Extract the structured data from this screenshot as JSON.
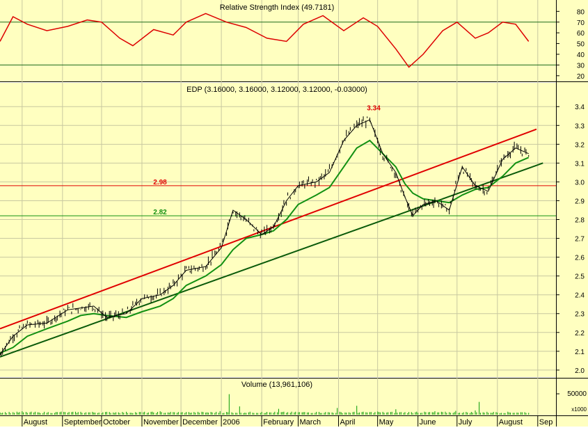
{
  "chart_data": {
    "type": "line",
    "panels": {
      "rsi": {
        "title": "Relative Strength Index (49.7181)",
        "ticks": [
          20,
          30,
          40,
          50,
          60,
          70,
          80
        ],
        "ylim": [
          16,
          88
        ],
        "bands": [
          30,
          70
        ],
        "series": {
          "color": "#dd0000",
          "x": [
            "2005-07-15",
            "2005-07-25",
            "2005-08-05",
            "2005-08-20",
            "2005-09-05",
            "2005-09-20",
            "2005-10-01",
            "2005-10-15",
            "2005-10-25",
            "2005-11-10",
            "2005-11-25",
            "2005-12-05",
            "2005-12-20",
            "2006-01-05",
            "2006-01-20",
            "2006-02-05",
            "2006-02-20",
            "2006-03-05",
            "2006-03-20",
            "2006-04-05",
            "2006-04-20",
            "2006-05-01",
            "2006-05-15",
            "2006-05-25",
            "2006-06-05",
            "2006-06-20",
            "2006-07-01",
            "2006-07-15",
            "2006-07-25",
            "2006-08-05",
            "2006-08-15",
            "2006-08-25"
          ],
          "values": [
            52,
            75,
            68,
            62,
            66,
            72,
            70,
            55,
            48,
            63,
            58,
            70,
            78,
            70,
            65,
            55,
            52,
            68,
            76,
            62,
            74,
            66,
            45,
            28,
            40,
            62,
            70,
            55,
            60,
            70,
            68,
            52
          ]
        }
      },
      "price": {
        "title": "EDP (3.16000, 3.16000, 3.12000, 3.12000, -0.03000)",
        "ticks": [
          2.0,
          2.1,
          2.2,
          2.3,
          2.4,
          2.5,
          2.6,
          2.7,
          2.8,
          2.9,
          3.0,
          3.1,
          3.2,
          3.3,
          3.4
        ],
        "ylim": [
          1.97,
          3.46
        ],
        "price_x": [
          "2005-07-15",
          "2005-07-25",
          "2005-08-05",
          "2005-08-20",
          "2005-09-05",
          "2005-09-15",
          "2005-09-25",
          "2005-10-05",
          "2005-10-20",
          "2005-11-01",
          "2005-11-15",
          "2005-11-25",
          "2005-12-05",
          "2005-12-20",
          "2006-01-01",
          "2006-01-10",
          "2006-01-20",
          "2006-02-01",
          "2006-02-10",
          "2006-02-20",
          "2006-03-01",
          "2006-03-15",
          "2006-03-25",
          "2006-04-05",
          "2006-04-15",
          "2006-04-25",
          "2006-05-05",
          "2006-05-15",
          "2006-05-22",
          "2006-05-28",
          "2006-06-05",
          "2006-06-15",
          "2006-06-25",
          "2006-07-05",
          "2006-07-15",
          "2006-07-25",
          "2006-08-05",
          "2006-08-15",
          "2006-08-25"
        ],
        "price_values": [
          2.08,
          2.18,
          2.24,
          2.25,
          2.32,
          2.33,
          2.34,
          2.28,
          2.3,
          2.38,
          2.4,
          2.45,
          2.53,
          2.55,
          2.65,
          2.85,
          2.8,
          2.72,
          2.76,
          2.9,
          2.98,
          3.0,
          3.05,
          3.22,
          3.3,
          3.33,
          3.15,
          3.05,
          2.92,
          2.82,
          2.88,
          2.9,
          2.85,
          3.08,
          2.98,
          2.95,
          3.12,
          3.18,
          3.15
        ],
        "ma_values": [
          2.09,
          2.12,
          2.18,
          2.22,
          2.26,
          2.29,
          2.3,
          2.29,
          2.28,
          2.31,
          2.34,
          2.38,
          2.45,
          2.5,
          2.56,
          2.64,
          2.7,
          2.72,
          2.74,
          2.8,
          2.88,
          2.93,
          2.97,
          3.08,
          3.18,
          3.22,
          3.15,
          3.08,
          2.99,
          2.94,
          2.91,
          2.9,
          2.89,
          2.93,
          2.96,
          2.97,
          3.03,
          3.1,
          3.13
        ],
        "ma_color": "#129012",
        "price_color": "#000000",
        "trend_lines": [
          {
            "color": "#e00000",
            "x0": "2005-07-15",
            "y0": 2.22,
            "x1": "2006-08-31",
            "y1": 3.28
          },
          {
            "color": "#0a5a0a",
            "x0": "2005-07-15",
            "y0": 2.07,
            "x1": "2006-09-05",
            "y1": 3.1
          }
        ],
        "levels": [
          {
            "value": 2.98,
            "label": "2.98",
            "color": "#e00000"
          },
          {
            "value": 2.82,
            "label": "2.82",
            "color": "#129012"
          }
        ],
        "peak_label": {
          "text": "3.34",
          "x": "2006-04-28",
          "y": 3.38,
          "color": "#dd0000"
        }
      },
      "volume": {
        "title": "Volume (13,961,106)",
        "tick": "50000",
        "scale_label": "x1000",
        "color": "#009900",
        "x": [
          "2005-07-15",
          "2005-08-01",
          "2005-08-15",
          "2005-09-01",
          "2005-09-15",
          "2005-10-01",
          "2005-10-15",
          "2005-11-01",
          "2005-11-15",
          "2005-12-01",
          "2005-12-15",
          "2006-01-01",
          "2006-01-08",
          "2006-01-15",
          "2006-02-01",
          "2006-02-15",
          "2006-03-01",
          "2006-03-15",
          "2006-04-01",
          "2006-04-15",
          "2006-05-01",
          "2006-05-15",
          "2006-06-01",
          "2006-06-15",
          "2006-07-01",
          "2006-07-15",
          "2006-07-18",
          "2006-08-01",
          "2006-08-15",
          "2006-08-25"
        ],
        "values": [
          10,
          12,
          8,
          15,
          11,
          9,
          14,
          10,
          12,
          9,
          11,
          16,
          80,
          30,
          14,
          22,
          12,
          18,
          25,
          40,
          15,
          20,
          18,
          12,
          14,
          16,
          75,
          12,
          10,
          9
        ],
        "ylim": [
          0,
          100
        ]
      }
    },
    "x_axis": {
      "months": [
        "August",
        "September",
        "October",
        "November",
        "December",
        "2006",
        "February",
        "March",
        "April",
        "May",
        "June",
        "July",
        "August",
        "Sep"
      ],
      "month_starts": [
        "2005-08-01",
        "2005-09-01",
        "2005-10-01",
        "2005-11-01",
        "2005-12-01",
        "2006-01-01",
        "2006-02-01",
        "2006-03-01",
        "2006-04-01",
        "2006-05-01",
        "2006-06-01",
        "2006-07-01",
        "2006-08-01",
        "2006-09-01"
      ],
      "start": "2005-07-15",
      "end": "2006-09-15"
    }
  }
}
